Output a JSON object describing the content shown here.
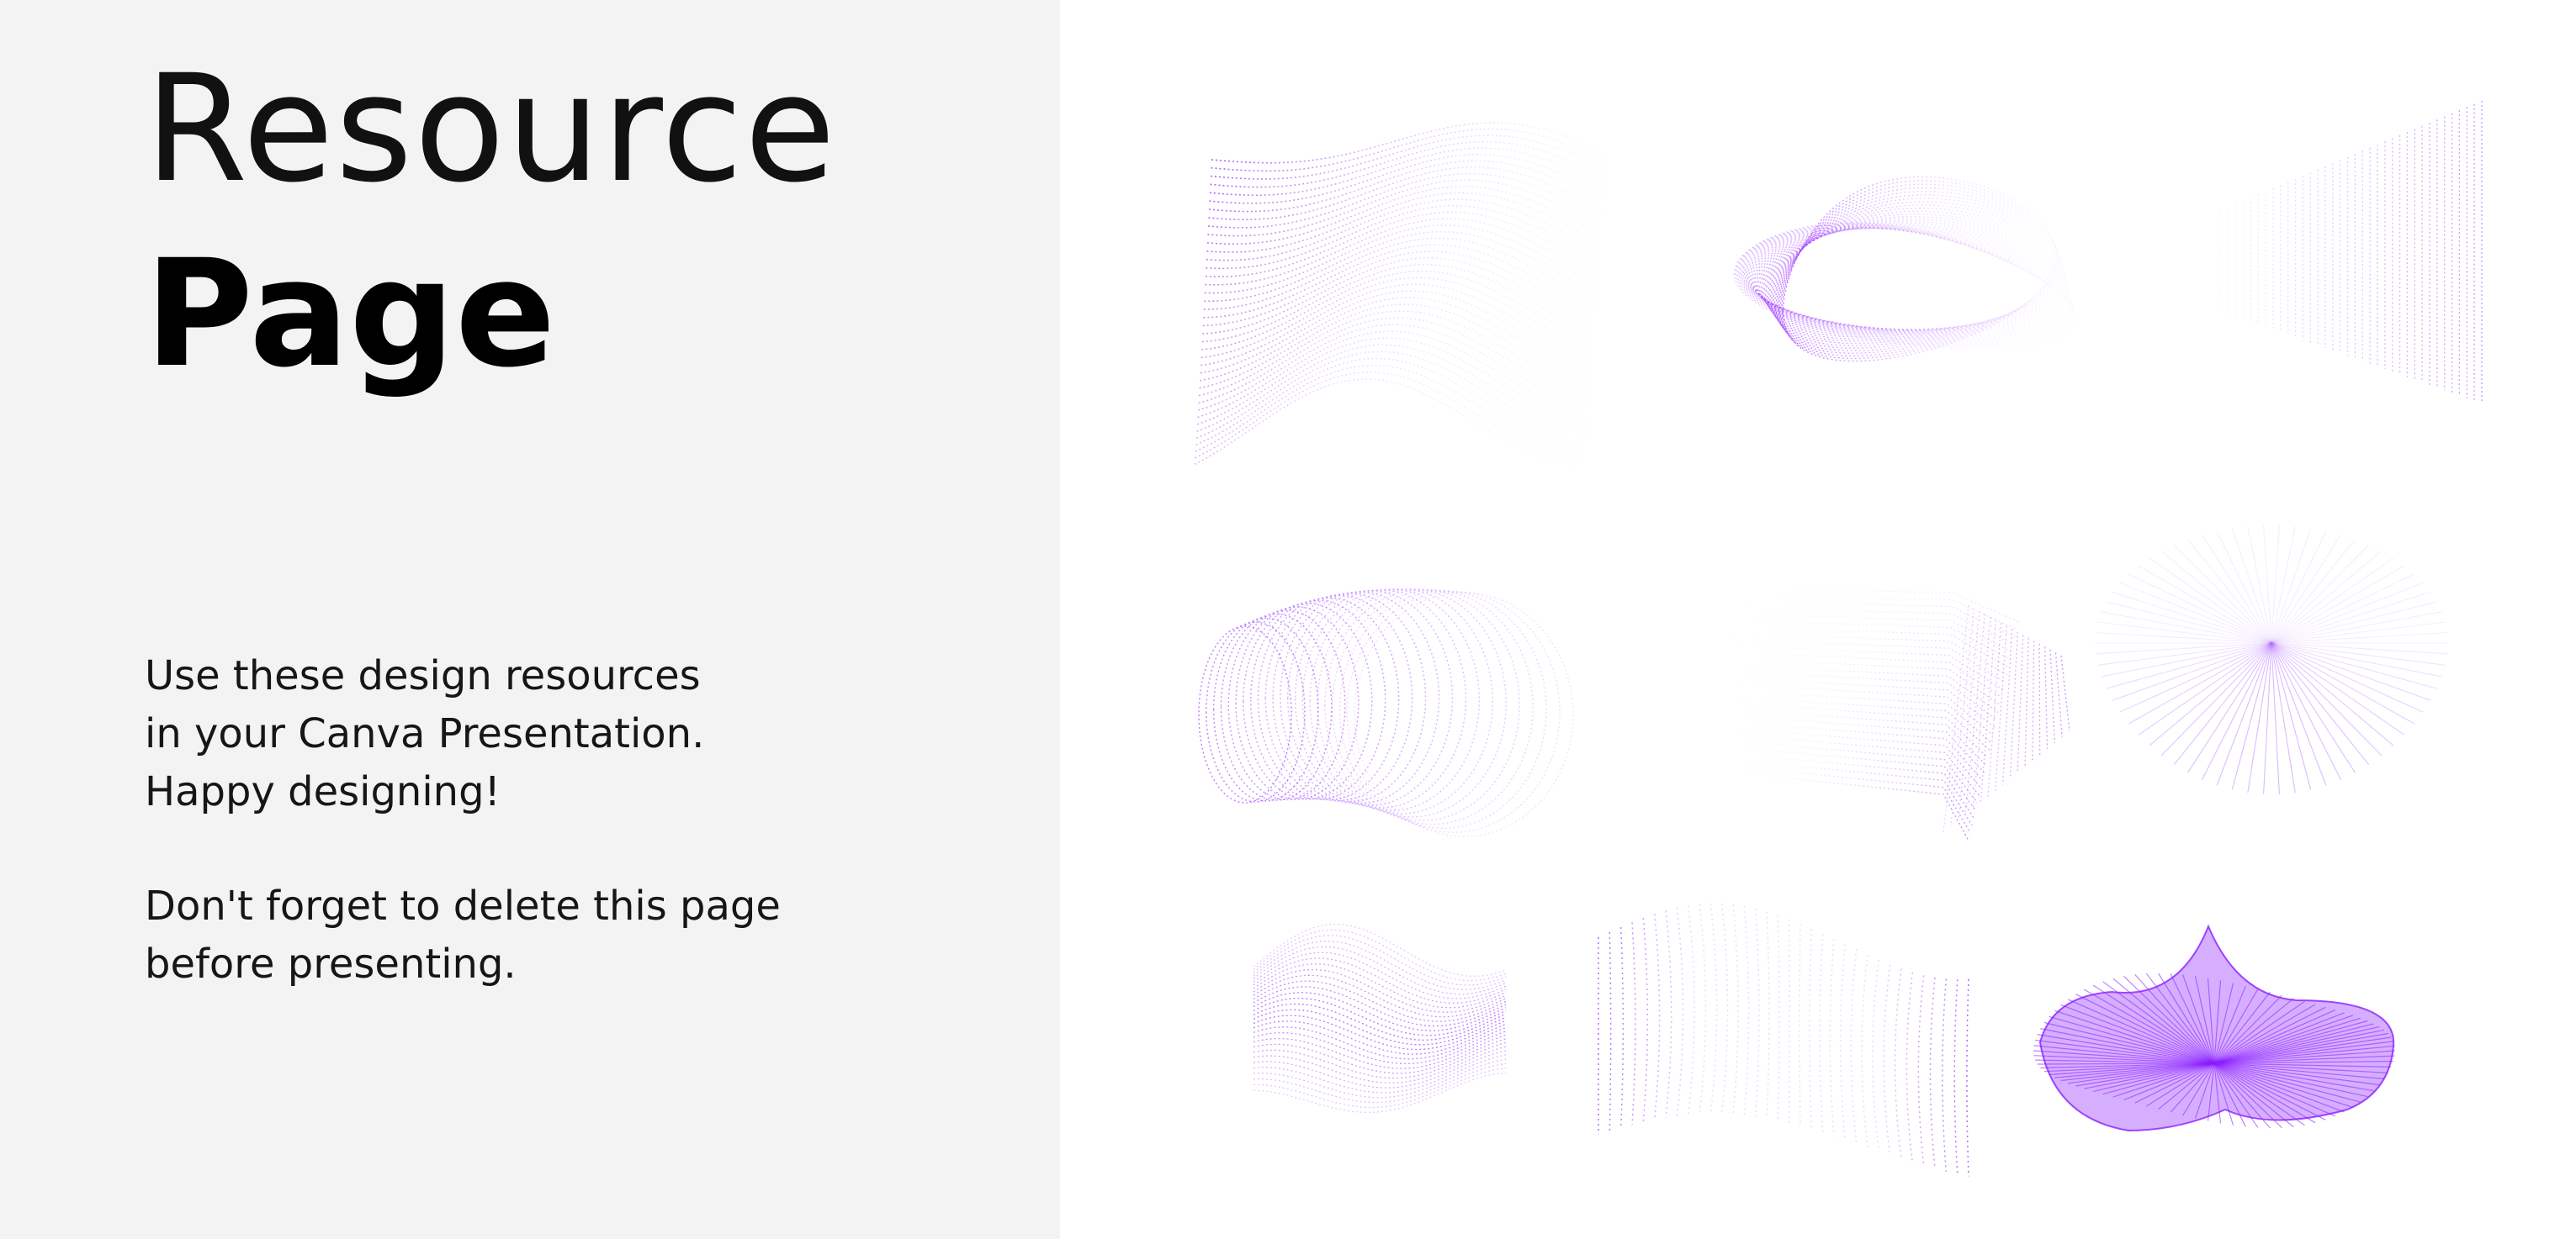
{
  "title": {
    "line1": "Resource",
    "line2": "Page"
  },
  "body": {
    "paragraph1": "Use these design resources\nin your Canva Presentation.\nHappy designing!",
    "paragraph2": "Don't forget to delete this page\nbefore presenting."
  },
  "colors": {
    "panel_background": "#f3f3f3",
    "accent_purple": "#9b30ff",
    "light_purple": "#d9b3ff"
  },
  "resources": [
    {
      "name": "wave-blob-graphic"
    },
    {
      "name": "twisted-loop-graphic"
    },
    {
      "name": "fading-plane-graphic"
    },
    {
      "name": "ring-tunnel-graphic"
    },
    {
      "name": "folded-sheet-graphic"
    },
    {
      "name": "radial-disc-graphic"
    },
    {
      "name": "small-wave-graphic"
    },
    {
      "name": "dotted-cloth-graphic"
    },
    {
      "name": "radial-mound-graphic"
    }
  ]
}
